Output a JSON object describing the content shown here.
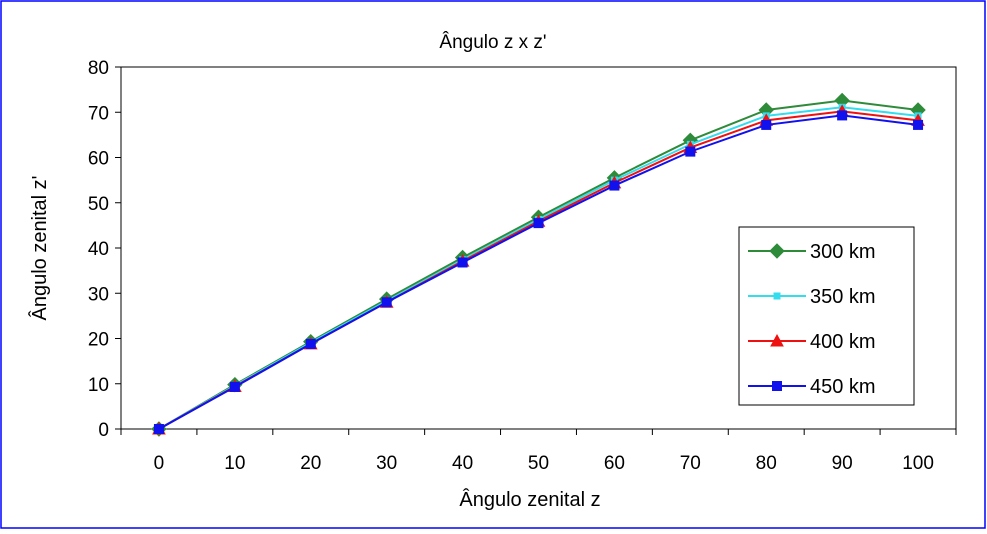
{
  "chart_data": {
    "type": "line",
    "title": "Ângulo z x z'",
    "xlabel": "Ângulo zenital z",
    "ylabel": "Ângulo zenital z'",
    "categories": [
      "0",
      "10",
      "20",
      "30",
      "40",
      "50",
      "60",
      "70",
      "80",
      "90",
      "100"
    ],
    "ylim": [
      0,
      80
    ],
    "y_ticks": [
      "0",
      "10",
      "20",
      "30",
      "40",
      "50",
      "60",
      "70",
      "80"
    ],
    "grid": false,
    "legend_position": "right",
    "series": [
      {
        "name": "300 km",
        "color": "#2e8b3a",
        "marker": "diamond",
        "values": [
          0,
          9.8,
          19.3,
          28.7,
          37.9,
          46.8,
          55.5,
          63.8,
          70.5,
          72.6,
          70.5
        ]
      },
      {
        "name": "350 km",
        "color": "#33ddee",
        "marker": "square-small",
        "values": [
          0,
          9.6,
          19.1,
          28.3,
          37.4,
          46.3,
          55.0,
          62.9,
          69.2,
          71.1,
          69.2
        ]
      },
      {
        "name": "400 km",
        "color": "#ee1111",
        "marker": "triangle",
        "values": [
          0,
          9.4,
          18.8,
          28.0,
          37.1,
          45.9,
          54.4,
          62.2,
          68.2,
          70.2,
          68.2
        ]
      },
      {
        "name": "450 km",
        "color": "#1111ee",
        "marker": "square",
        "values": [
          0,
          9.3,
          18.8,
          28.0,
          36.8,
          45.5,
          53.8,
          61.3,
          67.2,
          69.3,
          67.2
        ]
      }
    ]
  }
}
